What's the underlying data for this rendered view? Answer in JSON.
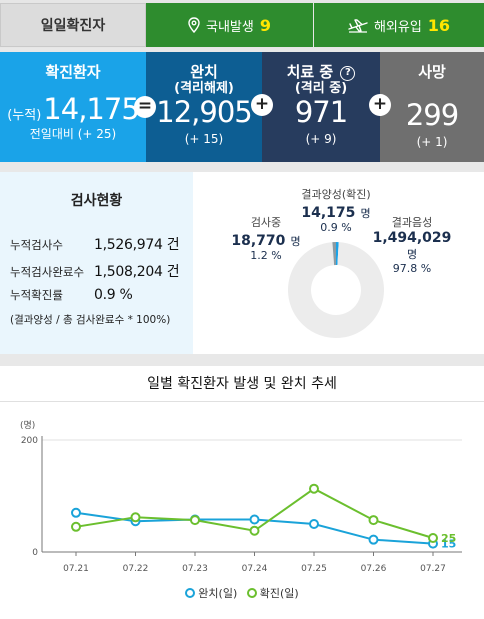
{
  "top": {
    "daily_tab": "일일확진자",
    "domestic_label": "국내발생",
    "domestic_value": "9",
    "overseas_label": "해외유입",
    "overseas_value": "16",
    "location_icon": "location-pin-icon",
    "overseas_icon": "airplane-icon",
    "accent_color": "#2e8c2e",
    "value_color": "#ffe600"
  },
  "stats": {
    "confirmed": {
      "title": "확진환자",
      "prefix": "(누적)",
      "value": "14,175",
      "delta": "전일대비 (+ 25)",
      "color": "#1aa3e8"
    },
    "released": {
      "title": "완치",
      "sub": "(격리해제)",
      "value": "12,905",
      "delta": "(+ 15)",
      "color": "#0d5e93"
    },
    "treatment": {
      "title": "치료 중",
      "qmark": "?",
      "sub": "(격리 중)",
      "value": "971",
      "delta": "(+ 9)",
      "color": "#273c5e"
    },
    "death": {
      "title": "사망",
      "value": "299",
      "delta": "(+ 1)",
      "color": "#6f6f6f"
    },
    "operators": {
      "equals": "=",
      "plus1": "+",
      "plus2": "+"
    }
  },
  "tests": {
    "title": "검사현황",
    "rows": [
      {
        "label": "누적검사수",
        "value": "1,526,974 건"
      },
      {
        "label": "누적검사완료수",
        "value": "1,508,204 건"
      },
      {
        "label": "누적확진률",
        "value": "0.9 %"
      }
    ],
    "note": "(결과양성 / 총 검사완료수 * 100%)",
    "pie": {
      "testing": {
        "caption": "검사중",
        "value": "18,770",
        "unit": "명",
        "pct": "1.2 %",
        "share": 1.2,
        "color": "#8c9ba3"
      },
      "positive": {
        "caption": "결과양성(확진)",
        "value": "14,175",
        "unit": "명",
        "pct": "0.9 %",
        "share": 0.9,
        "color": "#1aa3e8"
      },
      "negative": {
        "caption": "결과음성",
        "value": "1,494,029",
        "unit": "명",
        "pct": "97.8 %",
        "share": 97.8,
        "color": "#ececec"
      }
    }
  },
  "chart_data": {
    "type": "line",
    "title": "일별 확진환자 발생 및 완치 추세",
    "ylabel": "(명)",
    "ylim": [
      0,
      200
    ],
    "yticks": [
      "0",
      "200"
    ],
    "categories": [
      "07.21",
      "07.22",
      "07.23",
      "07.24",
      "07.25",
      "07.26",
      "07.27"
    ],
    "series": [
      {
        "name": "완치(일)",
        "color": "#1aa3d9",
        "values": [
          70,
          55,
          58,
          58,
          50,
          22,
          15
        ],
        "end_label": "15"
      },
      {
        "name": "확진(일)",
        "color": "#6bbf2e",
        "values": [
          45,
          62,
          57,
          38,
          113,
          57,
          25
        ],
        "end_label": "25"
      }
    ],
    "grid": true,
    "legend": "bottom"
  }
}
